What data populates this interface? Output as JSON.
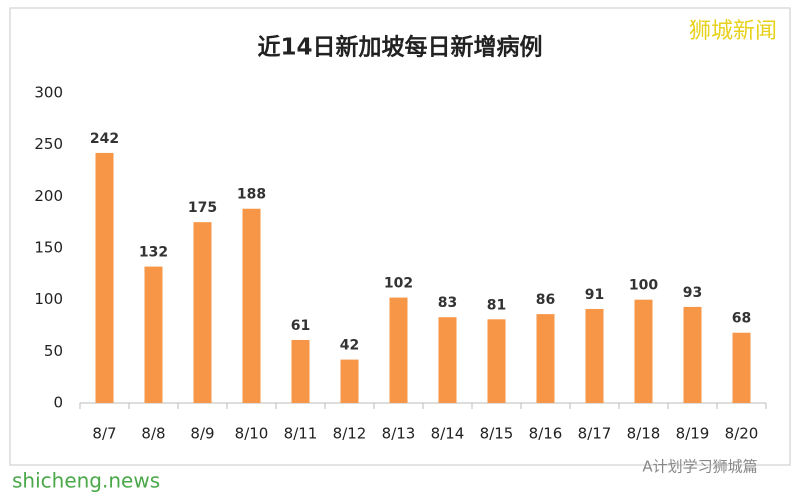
{
  "chart_data": {
    "type": "bar",
    "title": "近14日新加坡每日新增病例",
    "categories": [
      "8/7",
      "8/8",
      "8/9",
      "8/10",
      "8/11",
      "8/12",
      "8/13",
      "8/14",
      "8/15",
      "8/16",
      "8/17",
      "8/18",
      "8/19",
      "8/20"
    ],
    "values": [
      242,
      132,
      175,
      188,
      61,
      42,
      102,
      83,
      81,
      86,
      91,
      100,
      93,
      68
    ],
    "color": "#f79646",
    "ylim": [
      0,
      300
    ],
    "yticks": [
      0,
      50,
      100,
      150,
      200,
      250,
      300
    ],
    "grid": false,
    "annotations": [
      "狮城新闻",
      "shicheng.news",
      "A计划学习狮城篇"
    ]
  }
}
